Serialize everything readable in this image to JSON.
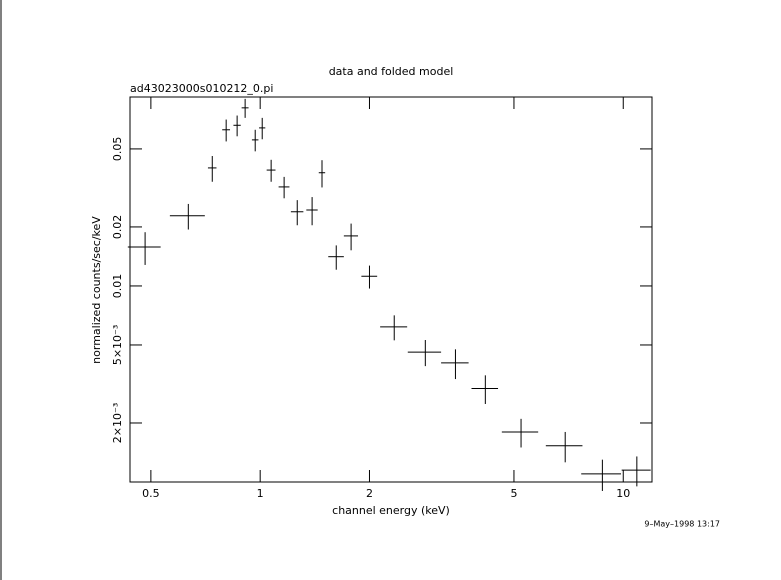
{
  "chart_data": {
    "type": "scatter",
    "title": "data and folded model",
    "subtitle": "ad43023000s010212_0.pi",
    "x_label": "channel energy (keV)",
    "y_label": "normalized counts/sec/keV",
    "annotation": "9–May–1998 13:17",
    "x_scale": "log",
    "y_scale": "log",
    "color": "#000000",
    "x": [
      0.482,
      0.634,
      0.738,
      0.806,
      0.864,
      0.909,
      0.969,
      1.013,
      1.072,
      1.164,
      1.265,
      1.39,
      1.48,
      1.62,
      1.78,
      2.0,
      2.34,
      2.85,
      3.45,
      4.17,
      5.23,
      6.92,
      8.76,
      10.9
    ],
    "xerr": [
      0.05,
      0.07,
      0.02,
      0.02,
      0.02,
      0.02,
      0.02,
      0.02,
      0.03,
      0.04,
      0.05,
      0.05,
      0.03,
      0.08,
      0.08,
      0.1,
      0.2,
      0.3,
      0.3,
      0.35,
      0.6,
      0.8,
      1.1,
      1.0
    ],
    "values": [
      0.0158,
      0.0228,
      0.04,
      0.0626,
      0.066,
      0.081,
      0.0556,
      0.064,
      0.039,
      0.032,
      0.0239,
      0.0244,
      0.0378,
      0.0141,
      0.018,
      0.0112,
      0.00618,
      0.0046,
      0.00405,
      0.003,
      0.0018,
      0.00153,
      0.0011,
      0.00115
    ],
    "yerr": [
      0.003,
      0.0034,
      0.006,
      0.008,
      0.008,
      0.009,
      0.007,
      0.008,
      0.005,
      0.004,
      0.0035,
      0.004,
      0.006,
      0.002,
      0.0028,
      0.0015,
      0.0009,
      0.0007,
      0.0007,
      0.0005,
      0.0003,
      0.00027,
      0.0002,
      0.0002
    ],
    "xlim": [
      0.438,
      12
    ],
    "ylim": [
      0.001,
      0.092
    ],
    "xticks": [
      0.5,
      1,
      2,
      5,
      10
    ],
    "yticks": [
      0.05,
      0.02,
      0.01,
      {
        "value": 0.005,
        "label": "5×10⁻³"
      },
      {
        "value": 0.002,
        "label": "2×10⁻³"
      }
    ],
    "grid": false
  }
}
